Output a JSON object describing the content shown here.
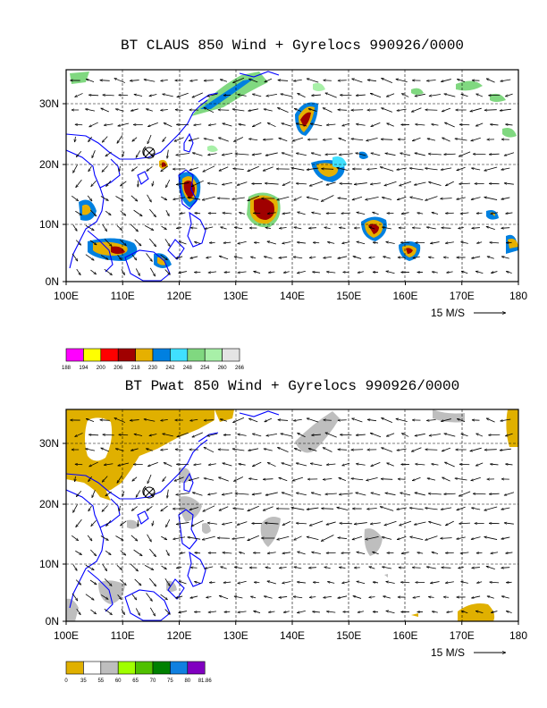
{
  "panels": [
    {
      "title": "BT CLAUS 850 Wind + Gyrelocs 990926/0000",
      "x_ticks": [
        "100E",
        "110E",
        "120E",
        "130E",
        "140E",
        "150E",
        "160E",
        "170E",
        "180"
      ],
      "y_ticks": [
        "0N",
        "10N",
        "20N",
        "30N"
      ],
      "wind_ref_label": "15 M/S",
      "colorbar": {
        "labels": [
          "188",
          "194",
          "200",
          "206",
          "218",
          "230",
          "242",
          "248",
          "254",
          "260",
          "266"
        ],
        "colors": [
          "#ff00ff",
          "#ffff00",
          "#ff0000",
          "#a00000",
          "#e6b000",
          "#0080e0",
          "#40e0ff",
          "#80d880",
          "#a8f0a8",
          "#e4e4e4"
        ]
      }
    },
    {
      "title": "BT Pwat 850 Wind + Gyrelocs 990926/0000",
      "x_ticks": [
        "100E",
        "110E",
        "120E",
        "130E",
        "140E",
        "150E",
        "160E",
        "170E",
        "180"
      ],
      "y_ticks": [
        "0N",
        "10N",
        "20N",
        "30N"
      ],
      "wind_ref_label": "15 M/S",
      "colorbar": {
        "labels": [
          "0",
          "35",
          "55",
          "60",
          "65",
          "70",
          "75",
          "80",
          "81.86"
        ],
        "colors": [
          "#e0b000",
          "#ffffff",
          "#bebebe",
          "#a0ff00",
          "#50c000",
          "#008000",
          "#1080e0",
          "#8000c0"
        ]
      }
    }
  ],
  "colors": {
    "coast": "#0000ff",
    "frame": "#000000"
  }
}
